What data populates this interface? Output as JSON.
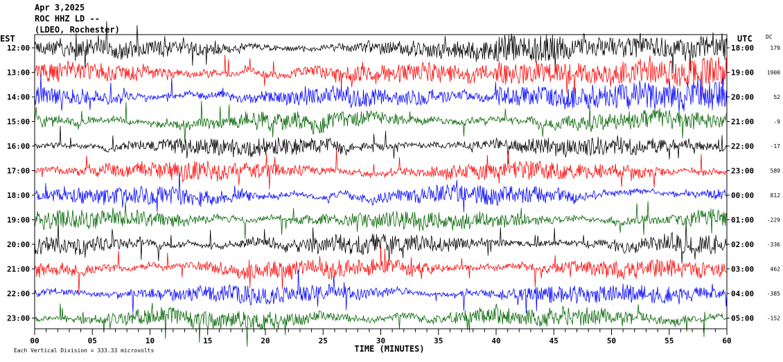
{
  "header": {
    "date": "Apr 3,2025",
    "station": "ROC HHZ LD --",
    "location": "(LDEO, Rochester)"
  },
  "labels": {
    "left_zone": "EST",
    "right_zone": "UTC",
    "dc_header": "DC",
    "xlabel": "TIME (MINUTES)",
    "footer": "Each Vertical Division =  333.33 microvolts"
  },
  "colors": {
    "trace_cycle": [
      "#000000",
      "#ff0000",
      "#0000ff",
      "#006400"
    ],
    "frame": "#000000",
    "background": "#ffffff"
  },
  "chart_data": {
    "type": "line",
    "description_type": "helicorder",
    "x_unit": "minutes",
    "xlim": [
      0,
      60
    ],
    "x_ticks": [
      "00",
      "05",
      "10",
      "15",
      "20",
      "25",
      "30",
      "35",
      "40",
      "45",
      "50",
      "55",
      "60"
    ],
    "rows": [
      {
        "est": "12:00",
        "utc": "18:00",
        "dc": "179",
        "color": "#000000"
      },
      {
        "est": "13:00",
        "utc": "19:00",
        "dc": "1900",
        "color": "#ff0000"
      },
      {
        "est": "14:00",
        "utc": "20:00",
        "dc": "52",
        "color": "#0000ff"
      },
      {
        "est": "15:00",
        "utc": "21:00",
        "dc": "-9",
        "color": "#006400"
      },
      {
        "est": "16:00",
        "utc": "22:00",
        "dc": "-17",
        "color": "#000000"
      },
      {
        "est": "17:00",
        "utc": "23:00",
        "dc": "589",
        "color": "#ff0000"
      },
      {
        "est": "18:00",
        "utc": "00:00",
        "dc": "812",
        "color": "#0000ff"
      },
      {
        "est": "19:00",
        "utc": "01:00",
        "dc": "-229",
        "color": "#006400"
      },
      {
        "est": "20:00",
        "utc": "02:00",
        "dc": "-336",
        "color": "#000000"
      },
      {
        "est": "21:00",
        "utc": "03:00",
        "dc": "462",
        "color": "#ff0000"
      },
      {
        "est": "22:00",
        "utc": "04:00",
        "dc": "-385",
        "color": "#0000ff"
      },
      {
        "est": "23:00",
        "utc": "05:00",
        "dc": "-152",
        "color": "#006400"
      }
    ]
  }
}
